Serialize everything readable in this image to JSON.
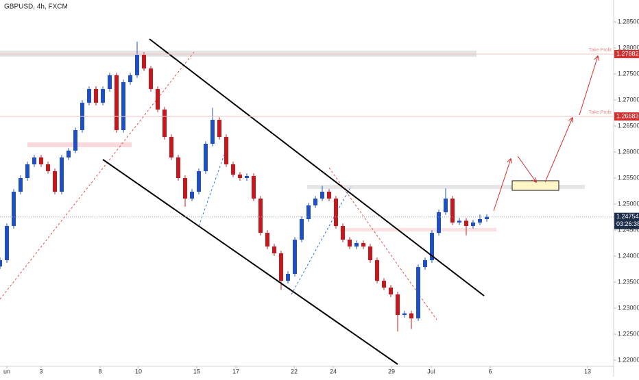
{
  "chart_data": {
    "type": "candlestick",
    "title": "GBPUSD, 4h, FXCM",
    "x": [
      0,
      1,
      2,
      3,
      4,
      5,
      6,
      7,
      8,
      9,
      10,
      11,
      12,
      13,
      14,
      15,
      16,
      17,
      18,
      19,
      20,
      21,
      22,
      23,
      24,
      25,
      26,
      27,
      28,
      29,
      30,
      31,
      32,
      33,
      34,
      35,
      36,
      37,
      38,
      39,
      40,
      41,
      42,
      43,
      44,
      45,
      46,
      47,
      48,
      49,
      50,
      51,
      52,
      53,
      54,
      55,
      56,
      57,
      58,
      59,
      60,
      61,
      62,
      63,
      64,
      65,
      66,
      67,
      68,
      69,
      70,
      71
    ],
    "open": [
      1.238,
      1.23921,
      1.24579,
      1.25237,
      1.255,
      1.25763,
      1.25895,
      1.25763,
      1.25632,
      1.25237,
      1.25895,
      1.26026,
      1.26421,
      1.26947,
      1.27211,
      1.26947,
      1.27211,
      1.27474,
      1.26421,
      1.27342,
      1.27474,
      1.27868,
      1.27605,
      1.27211,
      1.26816,
      1.26289,
      1.25895,
      1.255,
      1.25105,
      1.25237,
      1.25632,
      1.26158,
      1.26618,
      1.26289,
      1.25763,
      1.25566,
      1.255,
      1.2554,
      1.25105,
      1.24447,
      1.24184,
      1.24053,
      1.23526,
      1.23658,
      1.24316,
      1.24711,
      1.24974,
      1.25105,
      1.25237,
      1.25105,
      1.24579,
      1.24316,
      1.24184,
      1.2425,
      1.24184,
      1.23921,
      1.23526,
      1.23395,
      1.23263,
      1.22868,
      1.229,
      1.22803,
      1.23789,
      1.23921,
      1.24447,
      1.24842,
      1.25105,
      1.24645,
      1.2468,
      1.24579,
      1.24645,
      1.24711
    ],
    "high": [
      1.23971,
      1.24629,
      1.25287,
      1.2555,
      1.25813,
      1.25945,
      1.25945,
      1.25813,
      1.25682,
      1.25945,
      1.26076,
      1.26471,
      1.26997,
      1.27261,
      1.27261,
      1.27261,
      1.27524,
      1.27524,
      1.27392,
      1.27524,
      1.2812,
      1.27918,
      1.27655,
      1.27261,
      1.26866,
      1.26339,
      1.25945,
      1.2555,
      1.25287,
      1.25682,
      1.26208,
      1.2685,
      1.26668,
      1.26339,
      1.25813,
      1.25616,
      1.2559,
      1.2559,
      1.25155,
      1.24497,
      1.24234,
      1.24103,
      1.23708,
      1.24366,
      1.24761,
      1.25024,
      1.25155,
      1.2535,
      1.25287,
      1.25155,
      1.24629,
      1.24366,
      1.243,
      1.243,
      1.24234,
      1.23971,
      1.23576,
      1.23445,
      1.23313,
      1.2295,
      1.2295,
      1.23839,
      1.23971,
      1.24497,
      1.24892,
      1.253,
      1.25155,
      1.2473,
      1.2473,
      1.24695,
      1.248,
      1.24804
    ],
    "low": [
      1.2375,
      1.23871,
      1.24529,
      1.25187,
      1.2545,
      1.25713,
      1.25713,
      1.25582,
      1.25187,
      1.25187,
      1.25845,
      1.25976,
      1.26371,
      1.26897,
      1.26897,
      1.26897,
      1.27161,
      1.26371,
      1.26371,
      1.27292,
      1.27424,
      1.27555,
      1.27161,
      1.26766,
      1.26239,
      1.25845,
      1.2545,
      1.2495,
      1.25055,
      1.25187,
      1.25582,
      1.26108,
      1.26239,
      1.25713,
      1.25516,
      1.2545,
      1.2545,
      1.25055,
      1.24397,
      1.24134,
      1.24003,
      1.2335,
      1.23476,
      1.23608,
      1.24266,
      1.24661,
      1.24924,
      1.25055,
      1.25055,
      1.24529,
      1.24266,
      1.24134,
      1.24134,
      1.24134,
      1.23871,
      1.23476,
      1.23345,
      1.23213,
      1.2255,
      1.22818,
      1.226,
      1.22753,
      1.23739,
      1.23871,
      1.24397,
      1.24792,
      1.24595,
      1.24595,
      1.244,
      1.24529,
      1.24595,
      1.24661
    ],
    "close": [
      1.23921,
      1.24579,
      1.25237,
      1.255,
      1.25763,
      1.25895,
      1.25763,
      1.25632,
      1.25237,
      1.25895,
      1.26026,
      1.26421,
      1.26947,
      1.27211,
      1.26947,
      1.27211,
      1.27474,
      1.26421,
      1.27342,
      1.27474,
      1.27868,
      1.27605,
      1.27211,
      1.26816,
      1.26289,
      1.25895,
      1.255,
      1.25105,
      1.25237,
      1.25632,
      1.26158,
      1.26618,
      1.26289,
      1.25763,
      1.25566,
      1.255,
      1.2554,
      1.25105,
      1.24447,
      1.24184,
      1.24053,
      1.23526,
      1.23658,
      1.24316,
      1.24711,
      1.24974,
      1.25105,
      1.25237,
      1.25105,
      1.24579,
      1.24316,
      1.24184,
      1.2425,
      1.24184,
      1.23921,
      1.23526,
      1.23395,
      1.23263,
      1.22868,
      1.229,
      1.22803,
      1.23789,
      1.23921,
      1.24447,
      1.24842,
      1.25105,
      1.24645,
      1.2468,
      1.24579,
      1.24645,
      1.24711,
      1.24754
    ],
    "up_color": "#1f4ec9",
    "down_color": "#c8171c",
    "grid": false,
    "xlim": [
      0,
      89.5
    ],
    "xticks": [
      {
        "value": 1.0,
        "label": "un"
      },
      {
        "value": 6.0,
        "label": "3"
      },
      {
        "value": 14.6,
        "label": "8"
      },
      {
        "value": 20.2,
        "label": "10"
      },
      {
        "value": 28.7,
        "label": "15"
      },
      {
        "value": 34.4,
        "label": "17"
      },
      {
        "value": 42.9,
        "label": "22"
      },
      {
        "value": 48.6,
        "label": "24"
      },
      {
        "value": 57.1,
        "label": "29"
      },
      {
        "value": 62.9,
        "label": "Jul"
      },
      {
        "value": 71.5,
        "label": "6"
      },
      {
        "value": 85.7,
        "label": "13"
      }
    ],
    "ylim": [
      1.21882,
      1.28921
    ],
    "yticks": [
      {
        "value": 1.22,
        "label": "1.22000"
      },
      {
        "value": 1.225,
        "label": "1.22500"
      },
      {
        "value": 1.23,
        "label": "1.23000"
      },
      {
        "value": 1.235,
        "label": "1.23500"
      },
      {
        "value": 1.24,
        "label": "1.24000"
      },
      {
        "value": 1.245,
        "label": "1.24500"
      },
      {
        "value": 1.25,
        "label": "1.25000"
      },
      {
        "value": 1.255,
        "label": "1.25500"
      },
      {
        "value": 1.26,
        "label": "1.26000"
      },
      {
        "value": 1.265,
        "label": "1.26500"
      },
      {
        "value": 1.27,
        "label": "1.27000"
      },
      {
        "value": 1.275,
        "label": "1.27500"
      },
      {
        "value": 1.28,
        "label": "1.28000"
      },
      {
        "value": 1.285,
        "label": "1.28500"
      }
    ],
    "price_lines": [
      {
        "name": "Take Profit",
        "value": 1.27882,
        "color": "#d32f2f"
      },
      {
        "name": "Take Profit",
        "value": 1.26683,
        "color": "#d32f2f"
      }
    ],
    "last_price": {
      "value": 1.24754,
      "countdown": "03:26:38",
      "color": "#1c2e4a"
    }
  }
}
